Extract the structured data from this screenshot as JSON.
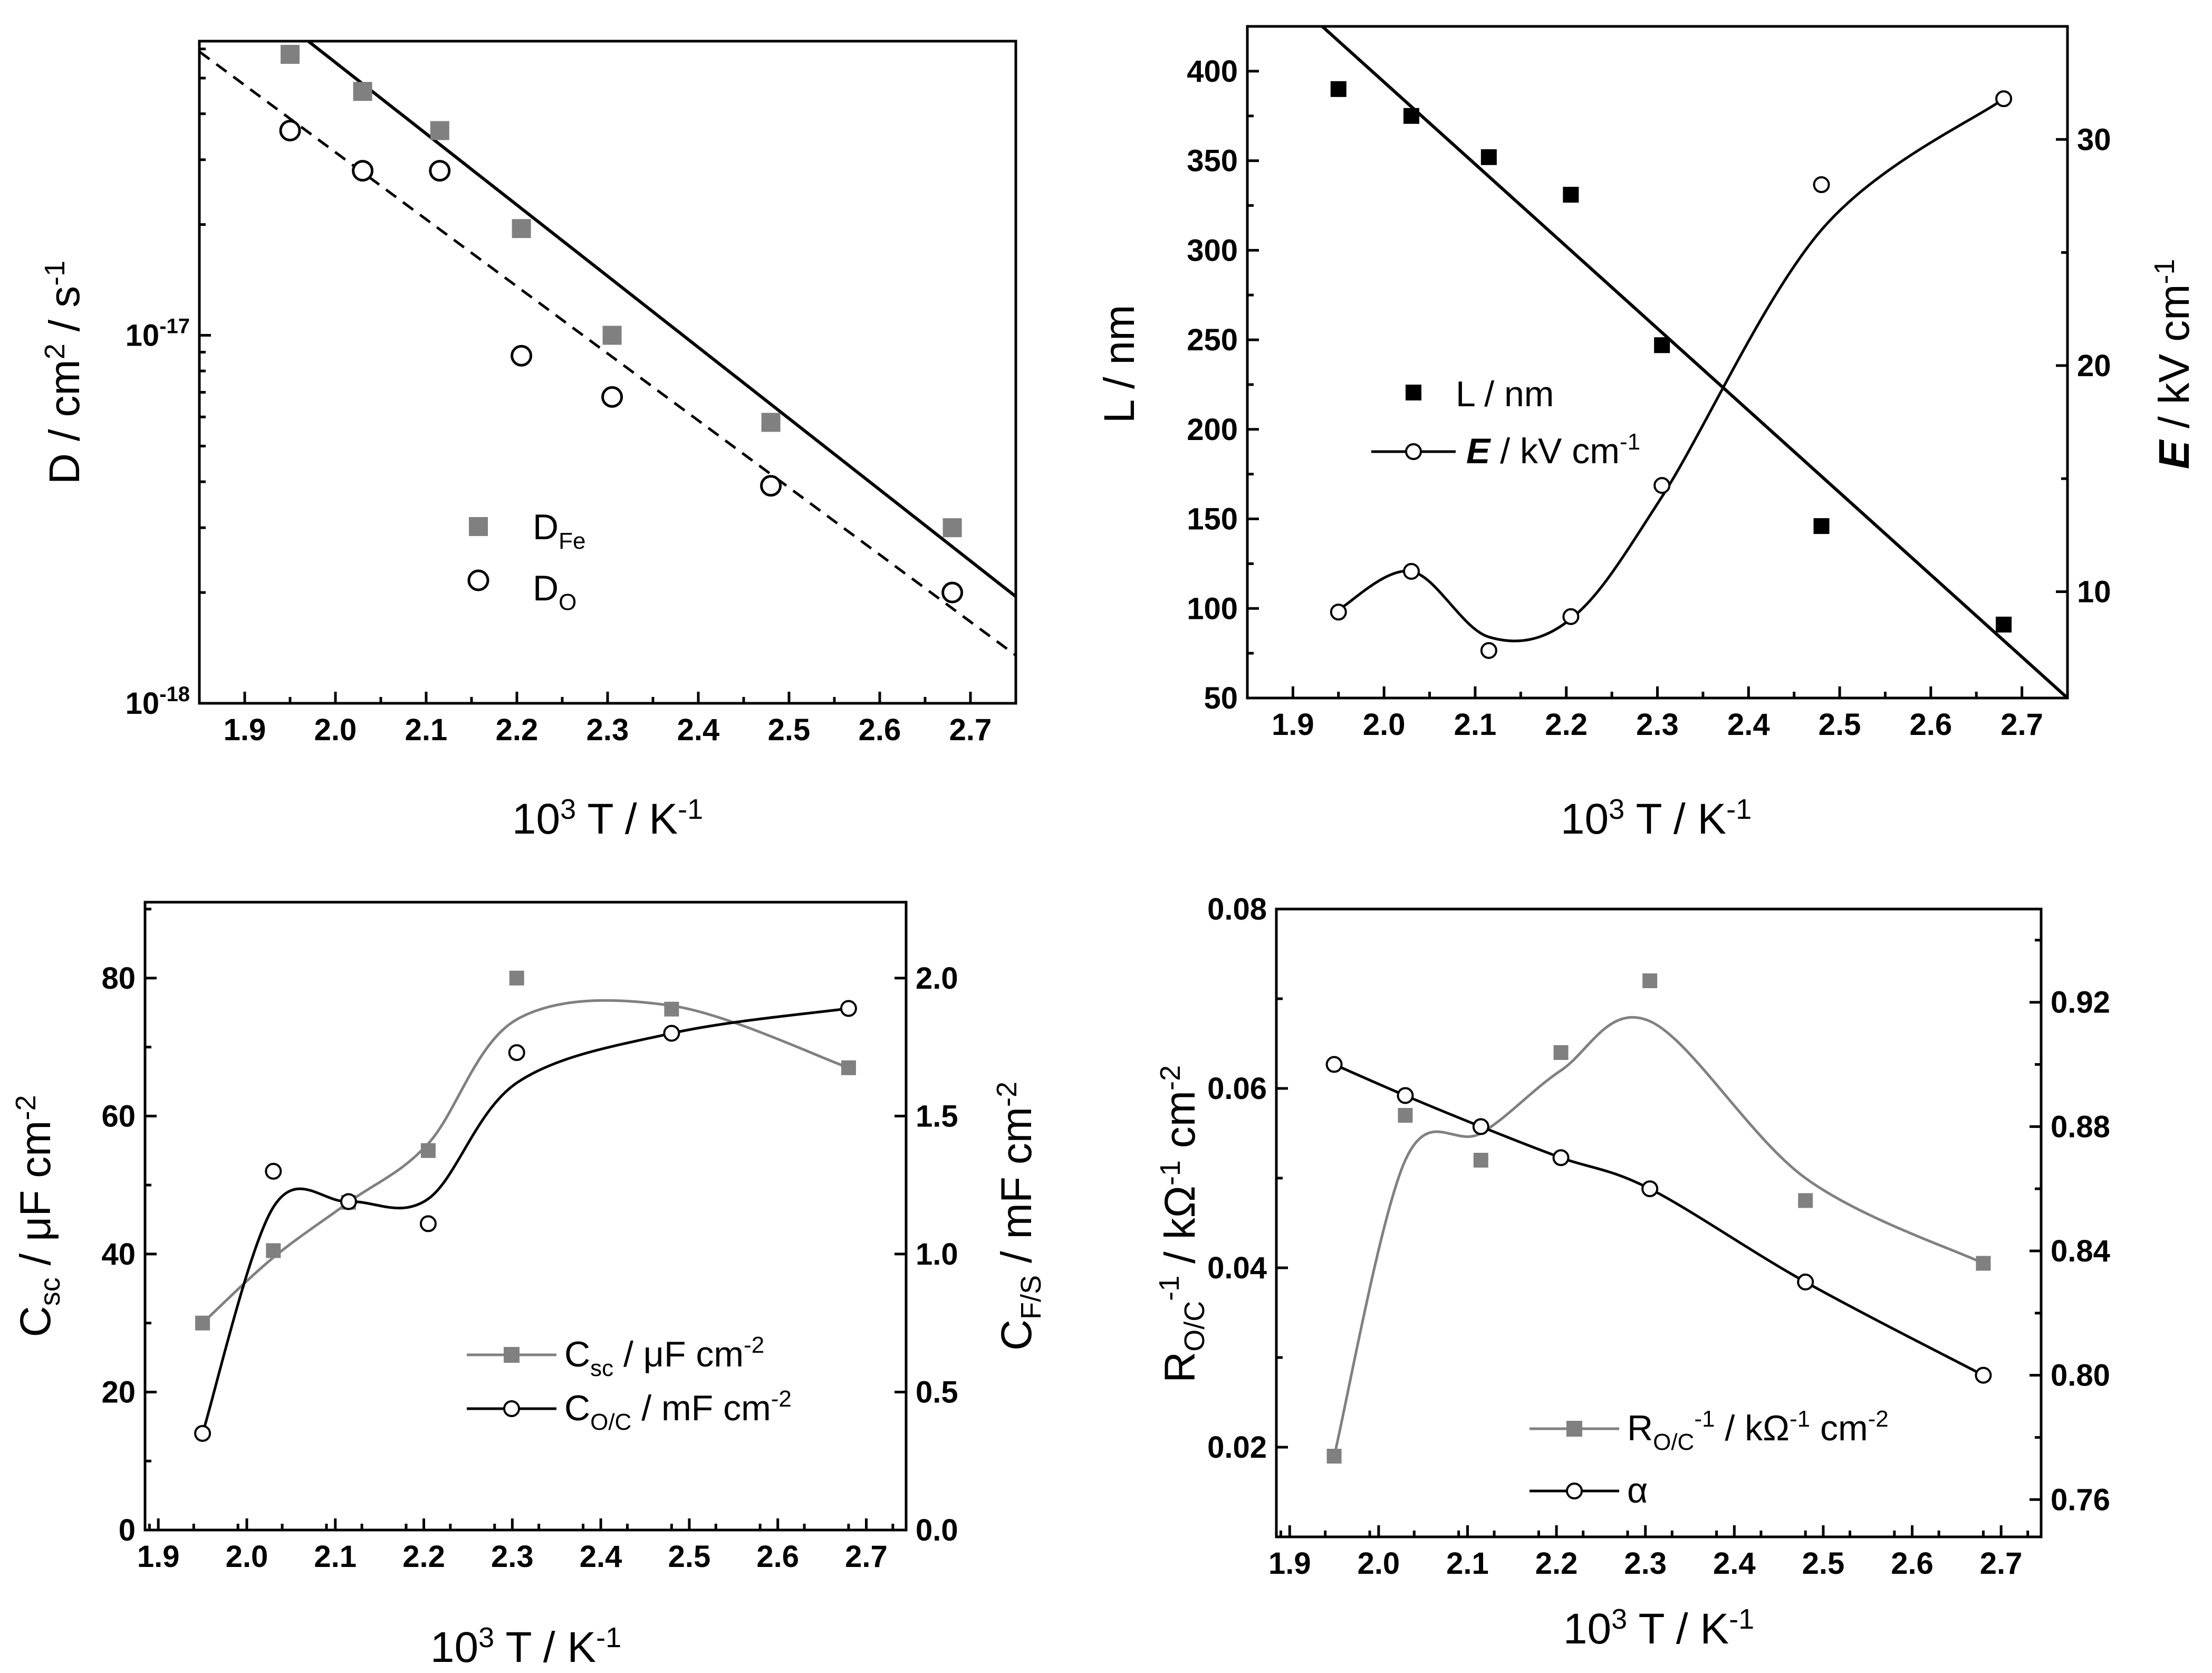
{
  "chart_data": [
    {
      "type": "scatter",
      "xlabel": "10³ T / K⁻¹",
      "ylabel": "D / cm² / s⁻¹",
      "yscale": "log",
      "xlim": [
        1.85,
        2.75
      ],
      "ylim": [
        1e-18,
        6.3e-17
      ],
      "xticks": [
        "1.9",
        "2.0",
        "2.1",
        "2.2",
        "2.3",
        "2.4",
        "2.5",
        "2.6",
        "2.7"
      ],
      "yticks": [
        {
          "value": 1e-17,
          "base": "10",
          "exp": "-17"
        },
        {
          "value": 1e-18,
          "base": "10",
          "exp": "-18"
        }
      ],
      "legend_position": "lower-middle",
      "series": [
        {
          "name": "D",
          "sub": "Fe",
          "marker": "square-gray",
          "x": [
            1.95,
            2.03,
            2.115,
            2.205,
            2.305,
            2.48,
            2.68
          ],
          "y": [
            5.8e-17,
            4.6e-17,
            3.6e-17,
            1.95e-17,
            1e-17,
            5.8e-18,
            3e-18
          ],
          "fit": {
            "style": "solid",
            "x": [
              1.97,
              2.75
            ],
            "y": [
              6.3e-17,
              1.95e-18
            ]
          }
        },
        {
          "name": "D",
          "sub": "O",
          "marker": "circle-open",
          "x": [
            1.95,
            2.03,
            2.115,
            2.205,
            2.305,
            2.48,
            2.68
          ],
          "y": [
            3.6e-17,
            2.8e-17,
            2.8e-17,
            8.8e-18,
            6.8e-18,
            3.9e-18,
            2e-18
          ],
          "fit": {
            "style": "dashed",
            "x": [
              1.85,
              2.75
            ],
            "y": [
              5.9e-17,
              1.35e-18
            ]
          }
        }
      ]
    },
    {
      "type": "line",
      "xlabel": "10³ T / K⁻¹",
      "ylabel": "L / nm",
      "y2label": "E / kV cm⁻¹",
      "xlim": [
        1.85,
        2.75
      ],
      "ylim": [
        50,
        425
      ],
      "y2lim": [
        5.3,
        35
      ],
      "xticks": [
        "1.9",
        "2.0",
        "2.1",
        "2.2",
        "2.3",
        "2.4",
        "2.5",
        "2.6",
        "2.7"
      ],
      "yticks": [
        50,
        100,
        150,
        200,
        250,
        300,
        350,
        400
      ],
      "y2ticks": [
        10,
        20,
        30
      ],
      "legend_position": "middle-center",
      "series": [
        {
          "name": "L / nm",
          "axis": "left",
          "marker": "square-black",
          "x": [
            1.95,
            2.03,
            2.115,
            2.205,
            2.305,
            2.48,
            2.68
          ],
          "y": [
            390,
            375,
            352,
            331,
            247,
            146,
            91
          ],
          "fit": {
            "style": "solid",
            "x": [
              1.93,
              2.75
            ],
            "y": [
              426,
              50
            ]
          }
        },
        {
          "name": "E",
          "unit": " / kV cm",
          "exp": "-1",
          "axis": "right",
          "marker": "circle-open-line",
          "x": [
            1.95,
            2.03,
            2.115,
            2.205,
            2.305,
            2.48,
            2.68
          ],
          "y": [
            9.1,
            10.9,
            7.4,
            8.9,
            14.7,
            28.0,
            31.8
          ],
          "curve_y": [
            9.2,
            10.9,
            8.0,
            8.8,
            14.2,
            26.0,
            31.8
          ]
        }
      ]
    },
    {
      "type": "line",
      "xlabel": "10³ T / K⁻¹",
      "ylabel": "Csc / μF cm⁻²",
      "y2label": "CF/S / mF cm⁻²",
      "xlim": [
        1.885,
        2.745
      ],
      "ylim": [
        0,
        91
      ],
      "y2lim": [
        0,
        2.275
      ],
      "xticks": [
        "1.9",
        "2.0",
        "2.1",
        "2.2",
        "2.3",
        "2.4",
        "2.5",
        "2.6",
        "2.7"
      ],
      "yticks": [
        0,
        20,
        40,
        60,
        80
      ],
      "y2ticks": [
        "0.0",
        "0.5",
        "1.0",
        "1.5",
        "2.0"
      ],
      "legend_position": "lower-right",
      "series": [
        {
          "name": "C",
          "sub": "sc",
          "unit": " / μF cm",
          "exp": "-2",
          "axis": "left",
          "marker": "square-gray-line",
          "x": [
            1.95,
            2.03,
            2.115,
            2.205,
            2.305,
            2.48,
            2.68
          ],
          "y": [
            30,
            40.5,
            47.5,
            55,
            80,
            75.5,
            67
          ],
          "curve_y": [
            30,
            39.5,
            47.5,
            56,
            74,
            76,
            67
          ]
        },
        {
          "name": "C",
          "sub": "O/C",
          "unit": " / mF cm",
          "exp": "-2",
          "axis": "right",
          "marker": "circle-open-line",
          "x": [
            1.95,
            2.03,
            2.115,
            2.205,
            2.305,
            2.48,
            2.68
          ],
          "y": [
            0.35,
            1.3,
            1.19,
            1.11,
            1.73,
            1.8,
            1.89
          ],
          "curve_y": [
            0.35,
            1.17,
            1.19,
            1.2,
            1.62,
            1.8,
            1.89
          ]
        }
      ]
    },
    {
      "type": "line",
      "xlabel": "10³ T / K⁻¹",
      "ylabel": "RO/C⁻¹ / kΩ⁻¹ cm⁻²",
      "xlim": [
        1.885,
        2.745
      ],
      "ylim": [
        0.01,
        0.08
      ],
      "y2lim": [
        0.748,
        0.95
      ],
      "xticks": [
        "1.9",
        "2.0",
        "2.1",
        "2.2",
        "2.3",
        "2.4",
        "2.5",
        "2.6",
        "2.7"
      ],
      "yticks": [
        "0.02",
        "0.04",
        "0.06",
        "0.08"
      ],
      "y2ticks": [
        "0.76",
        "0.80",
        "0.84",
        "0.88",
        "0.92"
      ],
      "legend_position": "bottom-right",
      "series": [
        {
          "name": "R",
          "sub": "O/C",
          "sup": "-1",
          "unit": " / kΩ",
          "unit_sup": "-1",
          "unit2": " cm",
          "unit2_sup": "-2",
          "axis": "left",
          "marker": "square-gray-line",
          "x": [
            1.95,
            2.03,
            2.115,
            2.205,
            2.305,
            2.48,
            2.68
          ],
          "y": [
            0.019,
            0.057,
            0.052,
            0.064,
            0.072,
            0.0475,
            0.0405
          ],
          "curve_y": [
            0.019,
            0.052,
            0.055,
            0.062,
            0.0675,
            0.05,
            0.0405
          ]
        },
        {
          "name": "α",
          "axis": "right",
          "marker": "circle-open-line",
          "x": [
            1.95,
            2.03,
            2.115,
            2.205,
            2.305,
            2.48,
            2.68
          ],
          "y": [
            0.9,
            0.89,
            0.88,
            0.87,
            0.86,
            0.83,
            0.8
          ],
          "curve_y": [
            0.9,
            0.89,
            0.88,
            0.87,
            0.86,
            0.83,
            0.8
          ]
        }
      ]
    }
  ]
}
